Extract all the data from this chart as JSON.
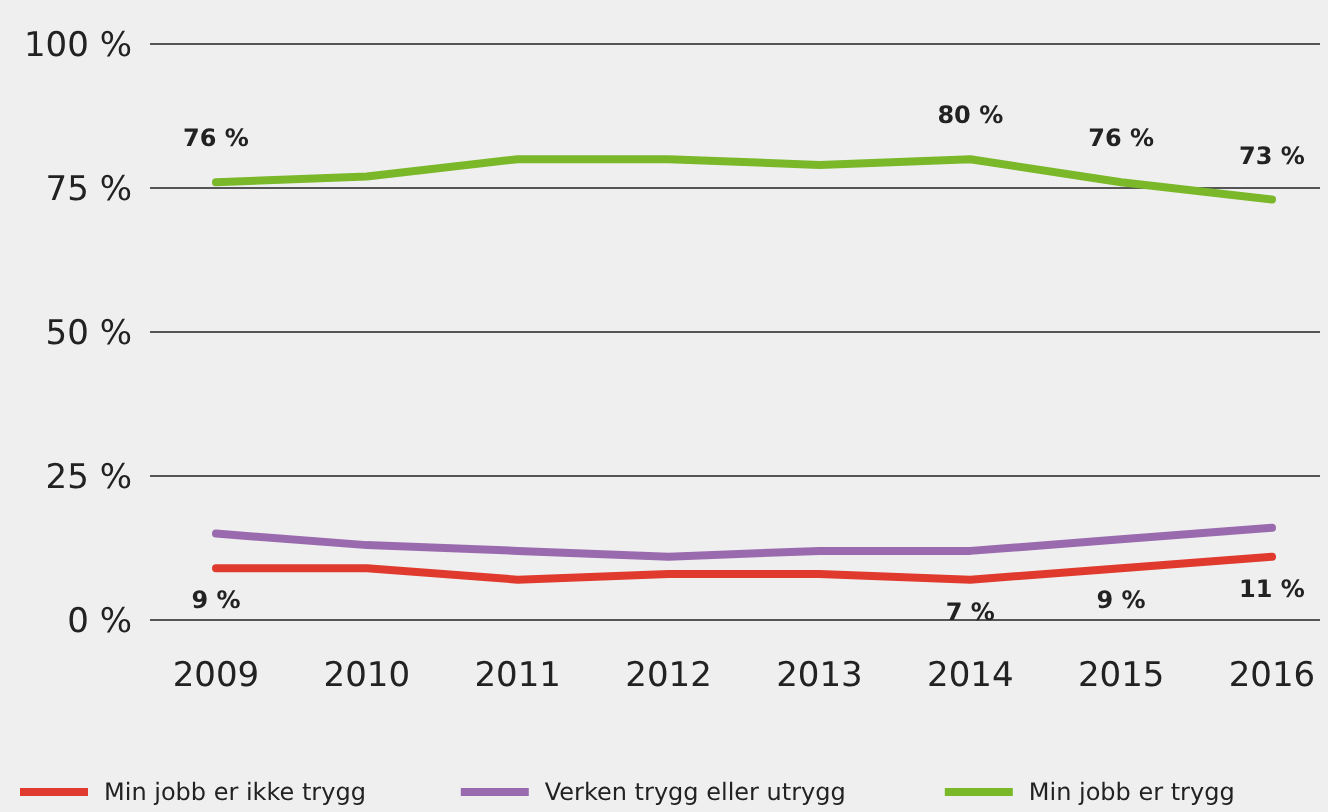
{
  "chart_data": {
    "type": "line",
    "categories": [
      "2009",
      "2010",
      "2011",
      "2012",
      "2013",
      "2014",
      "2015",
      "2016"
    ],
    "ylim": [
      0,
      100
    ],
    "yticks": [
      {
        "value": 0,
        "label": "0 %"
      },
      {
        "value": 25,
        "label": "25 %"
      },
      {
        "value": 50,
        "label": "50 %"
      },
      {
        "value": 75,
        "label": "75 %"
      },
      {
        "value": 100,
        "label": "100 %"
      }
    ],
    "grid": "y",
    "legend": "bottom",
    "marker": "none",
    "line_style": "solid",
    "series": [
      {
        "name": "Min jobb er ikke trygg",
        "color": "#e03a2e",
        "values": [
          9,
          9,
          7,
          8,
          8,
          7,
          9,
          11
        ],
        "value_labels": [
          "9 %",
          null,
          null,
          null,
          null,
          "7 %",
          "9 %",
          "11 %"
        ]
      },
      {
        "name": "Verken trygg eller utrygg",
        "color": "#9a6aae",
        "values": [
          15,
          13,
          12,
          11,
          12,
          12,
          14,
          16
        ]
      },
      {
        "name": "Min jobb er trygg",
        "color": "#7ab82a",
        "values": [
          76,
          77,
          80,
          80,
          79,
          80,
          76,
          73
        ],
        "value_labels": [
          "76 %",
          null,
          null,
          null,
          null,
          "80 %",
          "76 %",
          "73 %"
        ]
      }
    ]
  }
}
